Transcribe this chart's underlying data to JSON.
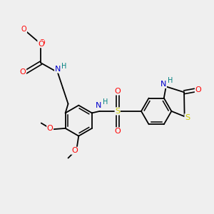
{
  "background_color": "#efefef",
  "bond_color": "#000000",
  "colors": {
    "C": "#000000",
    "N": "#0000cc",
    "O": "#ff0000",
    "S": "#cccc00",
    "H": "#008080"
  },
  "font_size": 8.0
}
